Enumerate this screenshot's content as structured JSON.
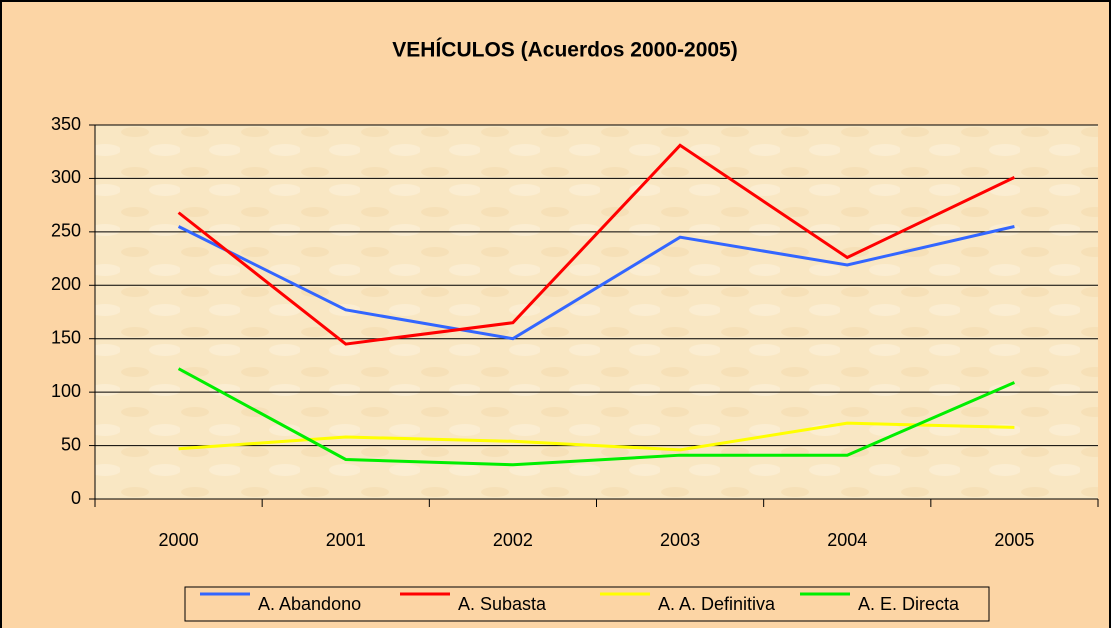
{
  "chart_data": {
    "type": "line",
    "title": "VEHÍCULOS (Acuerdos 2000-2005)",
    "categories": [
      "2000",
      "2001",
      "2002",
      "2003",
      "2004",
      "2005"
    ],
    "series": [
      {
        "name": "A. Abandono",
        "color": "#3366ff",
        "values": [
          255,
          177,
          150,
          245,
          219,
          255
        ]
      },
      {
        "name": "A. Subasta",
        "color": "#ff0000",
        "values": [
          268,
          145,
          165,
          331,
          226,
          301
        ]
      },
      {
        "name": "A. A. Definitiva",
        "color": "#ffff00",
        "values": [
          47,
          58,
          54,
          46,
          71,
          67
        ]
      },
      {
        "name": "A. E. Directa",
        "color": "#00ee00",
        "values": [
          122,
          37,
          32,
          41,
          41,
          109
        ]
      }
    ],
    "ylim": [
      0,
      350
    ],
    "yticks": [
      0,
      50,
      100,
      150,
      200,
      250,
      300,
      350
    ],
    "grid": true,
    "legend": "bottom"
  }
}
